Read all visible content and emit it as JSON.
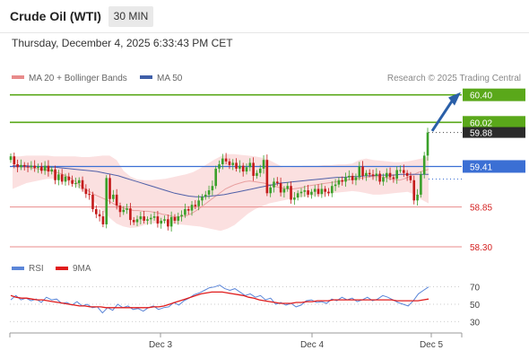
{
  "header": {
    "title": "Crude Oil (WTI)",
    "timeframe": "30 MIN",
    "timestamp": "Thursday, December 4, 2025 6:33:43 PM CET"
  },
  "legend": {
    "ma20_label": "MA 20 + Bollinger Bands",
    "ma50_label": "MA 50",
    "credit": "Research © 2025 Trading Central",
    "rsi_label": "RSI",
    "rsi_ma_label": "9MA"
  },
  "colors": {
    "green_line": "#5aa81a",
    "blue_line": "#3b6fd4",
    "red_line": "#e88b8b",
    "red_text": "#d42020",
    "bollinger_fill": "#fadada",
    "ma20": "#e8a0a0",
    "ma50": "#5060a8",
    "candle_up": "#3aa02a",
    "candle_down": "#c41a1a",
    "rsi": "#5b86d8",
    "rsi_ma": "#e01c1c",
    "arrow": "#2a5fa8"
  },
  "chart_data": [
    {
      "type": "candlestick",
      "title": "Crude Oil (WTI)",
      "timeframe": "30 MIN",
      "x_ticks": [
        "Dec 3",
        "Dec 4",
        "Dec 5"
      ],
      "ylim": [
        58.2,
        60.52
      ],
      "levels": [
        {
          "value": 60.4,
          "label": "60.40",
          "kind": "resistance"
        },
        {
          "value": 60.02,
          "label": "60.02",
          "kind": "resistance"
        },
        {
          "value": 59.41,
          "label": "59.41",
          "kind": "pivot"
        },
        {
          "value": 58.85,
          "label": "58.85",
          "kind": "support"
        },
        {
          "value": 58.3,
          "label": "58.30",
          "kind": "support"
        }
      ],
      "current_price": {
        "value": 59.88,
        "label": "59.88"
      },
      "close": [
        59.55,
        59.44,
        59.4,
        59.43,
        59.41,
        59.4,
        59.42,
        59.39,
        59.41,
        59.35,
        59.42,
        59.34,
        59.37,
        59.22,
        59.3,
        59.2,
        59.27,
        59.22,
        59.17,
        59.18,
        59.22,
        59.1,
        59.03,
        59.02,
        58.82,
        58.75,
        58.72,
        58.61,
        59.25,
        58.96,
        59.02,
        58.87,
        58.78,
        58.81,
        58.83,
        58.67,
        58.64,
        58.68,
        58.72,
        58.66,
        58.68,
        58.7,
        58.72,
        58.62,
        58.66,
        58.68,
        58.58,
        58.71,
        58.66,
        58.72,
        58.74,
        58.82,
        58.8,
        58.88,
        58.86,
        58.94,
        58.99,
        59.02,
        59.08,
        59.14,
        59.38,
        59.44,
        59.52,
        59.48,
        59.43,
        59.46,
        59.38,
        59.42,
        59.34,
        59.4,
        59.46,
        59.28,
        59.32,
        59.38,
        59.5,
        59.04,
        59.12,
        59.2,
        59.18,
        59.05,
        59.1,
        59.14,
        58.95,
        58.98,
        59.04,
        59.06,
        59.08,
        59.02,
        59.06,
        59.1,
        59.03,
        59.1,
        59.06,
        59.04,
        59.14,
        59.16,
        59.22,
        59.2,
        59.26,
        59.28,
        59.22,
        59.26,
        59.41,
        59.28,
        59.32,
        59.3,
        59.28,
        59.31,
        59.2,
        59.26,
        59.32,
        59.26,
        59.24,
        59.36,
        59.36,
        59.32,
        59.28,
        59.22,
        58.94,
        59.02,
        59.3,
        59.56,
        59.88
      ],
      "ma20": [
        59.42,
        59.41,
        59.4,
        59.4,
        59.39,
        59.38,
        59.37,
        59.36,
        59.35,
        59.33,
        59.31,
        59.28,
        59.25,
        59.2,
        59.15,
        59.1,
        59.06,
        59.02,
        58.99,
        58.96,
        58.93,
        58.89,
        58.86,
        58.83,
        58.82,
        58.8,
        58.8,
        58.79,
        58.79,
        58.78,
        58.77,
        58.75,
        58.74,
        58.72,
        58.71,
        58.72,
        58.73,
        58.76,
        58.8,
        58.85,
        58.9,
        58.95,
        59.0,
        59.05,
        59.1,
        59.13,
        59.16,
        59.18,
        59.2,
        59.21,
        59.2,
        59.19,
        59.18,
        59.16,
        59.14,
        59.12,
        59.11,
        59.1,
        59.1,
        59.11,
        59.12,
        59.14,
        59.15,
        59.16,
        59.17,
        59.18,
        59.19,
        59.2,
        59.21,
        59.22,
        59.23,
        59.24,
        59.25,
        59.26,
        59.27,
        59.27,
        59.27,
        59.26,
        59.24,
        59.23,
        59.22,
        59.24,
        59.27,
        59.3,
        59.33,
        59.35,
        59.37
      ],
      "ma50": [
        59.42,
        59.42,
        59.42,
        59.41,
        59.41,
        59.4,
        59.4,
        59.39,
        59.38,
        59.37,
        59.36,
        59.35,
        59.34,
        59.32,
        59.3,
        59.28,
        59.25,
        59.22,
        59.19,
        59.16,
        59.13,
        59.1,
        59.07,
        59.04,
        59.02,
        59.0,
        58.99,
        58.99,
        59.0,
        59.01,
        59.02,
        59.04,
        59.06,
        59.08,
        59.1,
        59.12,
        59.14,
        59.16,
        59.18,
        59.19,
        59.2,
        59.21,
        59.22,
        59.23,
        59.24,
        59.25,
        59.26,
        59.26,
        59.27,
        59.27,
        59.28,
        59.28,
        59.29,
        59.29,
        59.29,
        59.3,
        59.3,
        59.3,
        59.3,
        59.3
      ],
      "bollinger_upper": [
        59.55,
        59.55,
        59.56,
        59.56,
        59.56,
        59.56,
        59.55,
        59.55,
        59.55,
        59.55,
        59.54,
        59.54,
        59.55,
        59.56,
        59.56,
        59.5,
        59.35,
        59.27,
        59.23,
        59.22,
        59.22,
        59.23,
        59.24,
        59.26,
        59.28,
        59.3,
        59.33,
        59.38,
        59.44,
        59.5,
        59.55,
        59.58,
        59.58,
        59.57,
        59.56,
        59.55,
        59.53,
        59.5,
        59.45,
        59.4,
        59.4,
        59.41,
        59.42,
        59.42,
        59.42,
        59.43,
        59.43,
        59.44,
        59.44,
        59.45,
        59.5,
        59.52,
        59.5,
        59.49,
        59.48,
        59.47,
        59.47,
        59.48,
        59.5,
        59.52,
        59.55
      ],
      "bollinger_lower": [
        59.1,
        59.14,
        59.18,
        59.2,
        59.22,
        59.24,
        59.24,
        59.23,
        59.2,
        59.15,
        59.08,
        59.0,
        58.9,
        58.8,
        58.7,
        58.62,
        58.58,
        58.56,
        58.57,
        58.6,
        58.62,
        58.63,
        58.63,
        58.62,
        58.61,
        58.6,
        58.59,
        58.58,
        58.56,
        58.54,
        58.52,
        58.55,
        58.6,
        58.68,
        58.76,
        58.82,
        58.86,
        58.9,
        58.92,
        58.94,
        58.96,
        58.98,
        58.99,
        59.0,
        59.01,
        59.02,
        59.04,
        59.05,
        59.06,
        59.07,
        59.06,
        59.04,
        59.02,
        59.02,
        59.03,
        59.04,
        59.05,
        59.06,
        59.02,
        58.95,
        58.9
      ],
      "arrow": {
        "from": 59.9,
        "to": 60.4
      }
    },
    {
      "type": "line",
      "title": "RSI",
      "series": [
        {
          "name": "RSI",
          "values": [
            55,
            60,
            55,
            57,
            54,
            56,
            52,
            58,
            55,
            56,
            51,
            52,
            49,
            53,
            48,
            50,
            46,
            47,
            40,
            46,
            43,
            50,
            46,
            48,
            44,
            45,
            42,
            46,
            48,
            44,
            46,
            47,
            52,
            49,
            54,
            57,
            61,
            63,
            66,
            69,
            70,
            72,
            68,
            66,
            68,
            64,
            60,
            62,
            58,
            60,
            55,
            57,
            50,
            52,
            49,
            51,
            47,
            49,
            54,
            55,
            52,
            53,
            51,
            56,
            54,
            58,
            55,
            57,
            53,
            55,
            58,
            54,
            56,
            60,
            58,
            55,
            52,
            50,
            48,
            54,
            62,
            66,
            70
          ]
        },
        {
          "name": "9MA",
          "values": [
            60,
            58,
            57,
            57,
            56,
            55,
            55,
            54,
            53,
            52,
            51,
            50,
            49,
            48,
            48,
            47,
            47,
            47,
            46,
            46,
            46,
            46,
            46,
            46,
            46,
            46,
            46,
            47,
            47,
            48,
            50,
            52,
            54,
            56,
            58,
            60,
            62,
            63,
            64,
            64,
            64,
            63,
            62,
            61,
            60,
            58,
            57,
            55,
            54,
            53,
            52,
            51,
            51,
            51,
            52,
            52,
            53,
            53,
            54,
            54,
            54,
            55,
            55,
            55,
            55,
            55,
            55,
            55,
            55,
            55,
            55,
            55,
            55,
            54,
            54,
            54,
            54,
            54,
            55,
            56
          ]
        }
      ],
      "ylim": [
        22,
        80
      ],
      "y_ticks": [
        "70",
        "50",
        "30"
      ]
    }
  ]
}
